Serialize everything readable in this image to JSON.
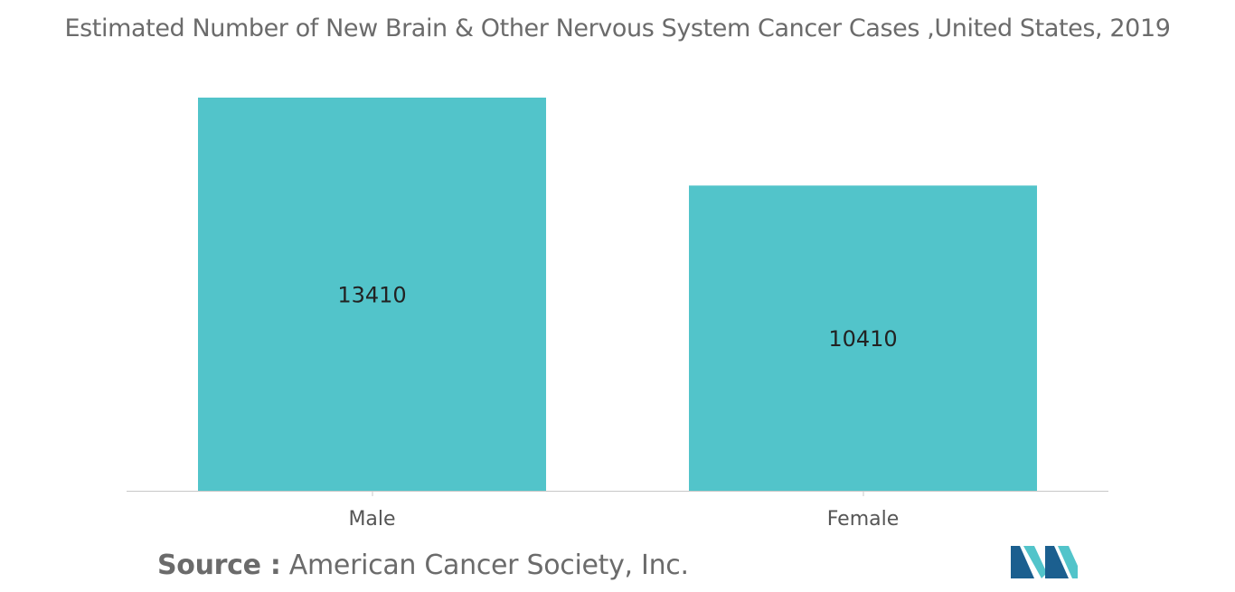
{
  "chart_data": {
    "type": "bar",
    "title": "Estimated Number of New Brain & Other Nervous System Cancer Cases ,United States, 2019",
    "categories": [
      "Male",
      "Female"
    ],
    "values": [
      13410,
      10410
    ],
    "data_labels": [
      "13410",
      "10410"
    ],
    "xlabel": "",
    "ylabel": "",
    "ylim": [
      0,
      13410
    ],
    "grid": false,
    "legend": "none",
    "bar_color": "#52c4ca"
  },
  "source": {
    "label": "Source :",
    "text": " American Cancer Society, Inc."
  },
  "logo": {
    "icon": "mordor-intelligence-logo-icon",
    "colors": [
      "#1b5f8f",
      "#52c4ca"
    ]
  },
  "colors": {
    "title": "#6b6b6b",
    "axis": "#c8c8c8",
    "tick_label": "#555555",
    "value_label": "#222222"
  }
}
